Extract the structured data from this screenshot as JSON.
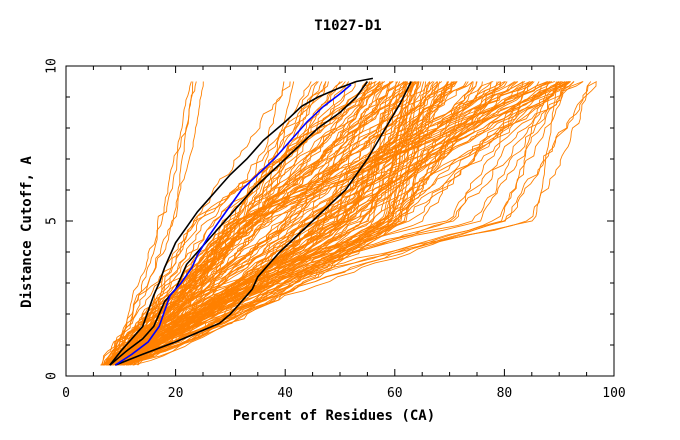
{
  "chart_data": {
    "type": "line",
    "title": "T1027-D1",
    "xlabel": "Percent of Residues (CA)",
    "ylabel": "Distance Cutoff, A",
    "xlim": [
      0,
      100
    ],
    "ylim": [
      0,
      10
    ],
    "x_ticks": [
      0,
      20,
      40,
      60,
      80,
      100
    ],
    "y_ticks": [
      0,
      5,
      10
    ],
    "colors": {
      "background_models": "#ff8000",
      "highlight_black": "#000000",
      "highlight_blue": "#0000ff"
    },
    "black_series": [
      {
        "x": [
          8,
          10,
          12,
          14,
          15,
          16,
          17,
          18,
          19,
          20,
          22,
          24,
          26,
          28,
          30,
          33,
          36,
          40,
          43,
          46,
          50,
          53,
          56
        ],
        "y": [
          0.35,
          0.8,
          1.2,
          1.6,
          2.1,
          2.6,
          3.0,
          3.5,
          3.9,
          4.3,
          4.8,
          5.3,
          5.7,
          6.1,
          6.5,
          7.0,
          7.6,
          8.2,
          8.7,
          9.0,
          9.3,
          9.5,
          9.6
        ]
      },
      {
        "x": [
          8,
          11,
          14,
          16,
          17,
          18,
          20,
          21,
          22,
          24,
          26,
          28,
          30,
          32,
          34,
          37,
          40,
          43,
          46,
          50,
          53,
          55
        ],
        "y": [
          0.35,
          0.8,
          1.2,
          1.6,
          2.0,
          2.4,
          2.8,
          3.2,
          3.6,
          4.0,
          4.4,
          4.8,
          5.2,
          5.6,
          6.0,
          6.5,
          7.0,
          7.5,
          8.0,
          8.5,
          9.0,
          9.5
        ]
      },
      {
        "x": [
          9,
          14,
          20,
          24,
          28,
          30,
          32,
          34,
          35,
          37,
          39,
          42,
          45,
          48,
          51,
          53,
          55,
          57,
          59,
          61,
          63
        ],
        "y": [
          0.35,
          0.7,
          1.1,
          1.4,
          1.7,
          2.0,
          2.4,
          2.8,
          3.2,
          3.6,
          4.0,
          4.5,
          5.0,
          5.5,
          6.0,
          6.5,
          7.0,
          7.6,
          8.2,
          8.8,
          9.5
        ]
      }
    ],
    "blue_series": [
      {
        "x": [
          9,
          12,
          15,
          17,
          18,
          19,
          21,
          23,
          24,
          26,
          28,
          30,
          32,
          35,
          38,
          41,
          44,
          47,
          50,
          52
        ],
        "y": [
          0.35,
          0.7,
          1.1,
          1.6,
          2.1,
          2.6,
          3.0,
          3.5,
          3.9,
          4.5,
          5.0,
          5.5,
          6.0,
          6.5,
          7.0,
          7.6,
          8.2,
          8.7,
          9.1,
          9.4
        ]
      }
    ],
    "background_series_note_count": 150
  }
}
